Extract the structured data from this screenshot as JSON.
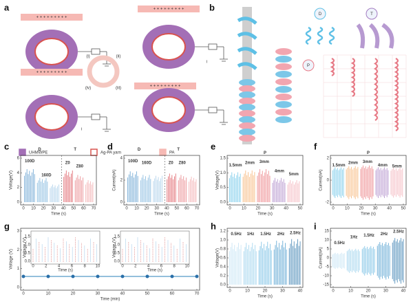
{
  "panels": [
    {
      "label": "a",
      "charges": "+ + + + + + + + +",
      "texts": [
        "(i)",
        "(ii)",
        "(iii)",
        "(iv)",
        "i",
        "i"
      ],
      "legend": [
        "UHMWPE",
        "Ag-PA yarn",
        "PA"
      ]
    },
    {
      "label": "b",
      "texts": [
        "D",
        "T",
        "P"
      ]
    },
    {
      "label": "c",
      "ylabel": "Voltage(V)",
      "xlabel": "Time (s)",
      "yticks": [
        "0",
        "2",
        "4",
        "6"
      ],
      "xticks": [
        "0",
        "10",
        "20",
        "30",
        "40",
        "50",
        "60",
        "70"
      ],
      "annotations": [
        "100D",
        "160D",
        "D",
        "T",
        "Z0",
        "Z80"
      ]
    },
    {
      "label": "d",
      "ylabel": "Current(nA)",
      "xlabel": "Time (s)",
      "yticks": [
        "0",
        "2",
        "4"
      ],
      "xticks": [
        "0",
        "10",
        "20",
        "30",
        "40",
        "50",
        "60",
        "70"
      ],
      "annotations": [
        "100D",
        "160D",
        "D",
        "T",
        "Z0",
        "Z80"
      ]
    },
    {
      "label": "e",
      "ylabel": "Voltage(V)",
      "xlabel": "Time (s)",
      "yticks": [
        "0.0",
        "0.5",
        "1.0",
        "1.5"
      ],
      "xticks": [
        "0",
        "10",
        "20",
        "30",
        "40",
        "50"
      ],
      "annotations": [
        "1.5mm",
        "2mm",
        "3mm",
        "4mm",
        "5mm",
        "P"
      ]
    },
    {
      "label": "f",
      "ylabel": "Current(nA)",
      "xlabel": "Time (s)",
      "yticks": [
        "-2",
        "0",
        "2"
      ],
      "xticks": [
        "0",
        "10",
        "20",
        "30",
        "40",
        "50"
      ],
      "annotations": [
        "1.5mm",
        "2mm",
        "3mm",
        "4mm",
        "5mm",
        "P"
      ]
    },
    {
      "label": "g",
      "ylabel": "Voltage (V)",
      "xlabel": "Time (min)",
      "yticks": [
        "0",
        "1",
        "2",
        "3"
      ],
      "xticks": [
        "0",
        "10",
        "20",
        "30",
        "40",
        "50",
        "60",
        "70"
      ],
      "inset": {
        "ylabel": "Voltage (V)",
        "xlabel": "Time (s)",
        "yticks": [
          "0.0",
          "0.5",
          "1.0",
          "1.5"
        ],
        "xticks": [
          "0",
          "2",
          "4",
          "6",
          "8",
          "10"
        ]
      }
    },
    {
      "label": "h",
      "ylabel": "Voltage(V)",
      "xlabel": "Time (s)",
      "yticks": [
        "0.0",
        "0.2",
        "0.4",
        "0.6",
        "0.8",
        "1.0",
        "1.2"
      ],
      "xticks": [
        "0",
        "10",
        "20",
        "30",
        "40"
      ],
      "annotations": [
        "0.5Hz",
        "1Hz",
        "1.5Hz",
        "2Hz",
        "2.5Hz"
      ]
    },
    {
      "label": "i",
      "ylabel": "Current(nA)",
      "xlabel": "Time (s)",
      "yticks": [
        "-15",
        "-10",
        "-5",
        "0",
        "5",
        "10",
        "15"
      ],
      "xticks": [
        "0",
        "10",
        "20",
        "30",
        "40"
      ],
      "annotations": [
        "0.5Hz",
        "1Hz",
        "1.5Hz",
        "2Hz",
        "2.5Hz"
      ]
    }
  ]
}
